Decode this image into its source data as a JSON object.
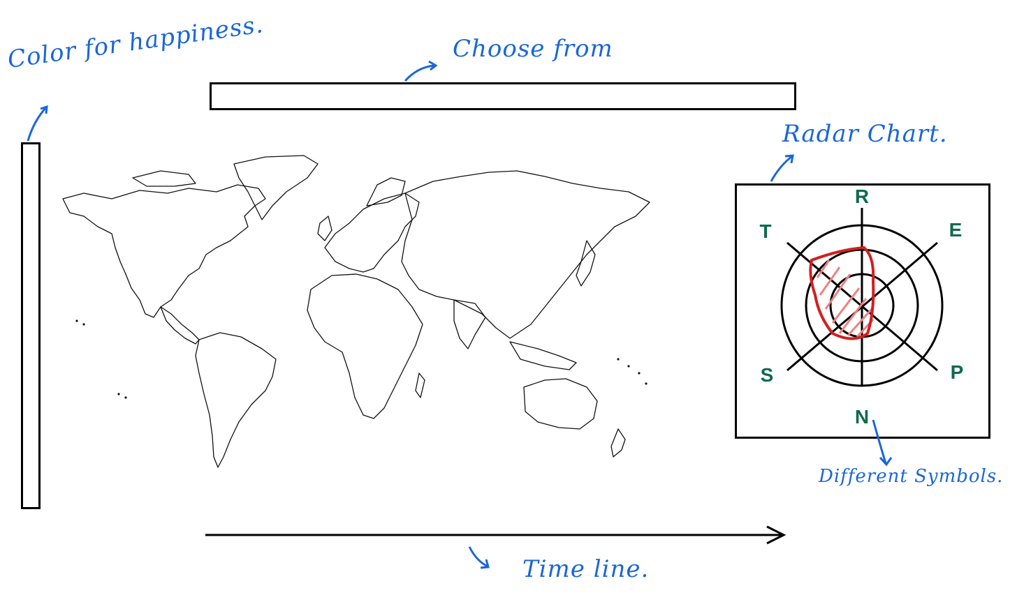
{
  "colors": {
    "annotation": "#1a66d9",
    "radar_label": "#0d6b4a",
    "radar_outline": "#d21f1f",
    "radar_fill_hatch": "#f08080"
  },
  "annotations": {
    "color_legend": "Color for happiness.",
    "choose_from": "Choose from",
    "radar_chart": "Radar Chart.",
    "different_symbols": "Different Symbols.",
    "time_line": "Time line."
  },
  "components": {
    "color_scale_bar": "color-legend",
    "dropdown_selector": "choose-from-box",
    "world_map": "world-map",
    "timeline_axis": "timeline-arrow",
    "radar_panel": "radar-chart"
  },
  "radar": {
    "axes": [
      "R",
      "E",
      "P",
      "N",
      "S",
      "T"
    ],
    "rings": 3
  },
  "icons": {
    "arrow": "arrow-icon",
    "timeline_arrowhead": "arrowhead-icon"
  }
}
